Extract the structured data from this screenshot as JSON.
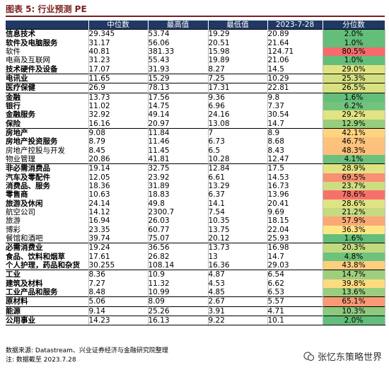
{
  "title": "图表 5:  行业预测 PE",
  "headers": [
    "",
    "中位数",
    "最高值",
    "最低值",
    "2023-7-28",
    "分位数"
  ],
  "colors": {
    "header_bg": "#1f3864",
    "title": "#7b1f1f"
  },
  "rows": [
    {
      "name": "信息技术",
      "level": 1,
      "cells": [
        "29.345",
        "53.74",
        "19.29",
        "20.89",
        "2.0%"
      ],
      "pct_color": "#63be7b"
    },
    {
      "name": "软件及电脑服务",
      "level": 2,
      "cells": [
        "31.17",
        "56.06",
        "20.51",
        "21.64",
        "1.0%"
      ],
      "pct_color": "#63be7b"
    },
    {
      "name": "软件",
      "level": 3,
      "cells": [
        "40.81",
        "381.33",
        "15.98",
        "124.71",
        "80.5%"
      ],
      "pct_color": "#f8696b"
    },
    {
      "name": "电商及互联网",
      "level": 3,
      "cells": [
        "31.23",
        "55.43",
        "19.89",
        "21.06",
        "1.0%"
      ],
      "pct_color": "#63be7b"
    },
    {
      "name": "技术硬件及设备",
      "level": 2,
      "cells": [
        "17.07",
        "31.93",
        "8.27",
        "14.5",
        "29.0%"
      ],
      "pct_color": "#e1e383"
    },
    {
      "name": "电讯业",
      "level": 1,
      "cells": [
        "11.65",
        "15.29",
        "7.25",
        "10.29",
        "25.3%"
      ],
      "pct_color": "#d4df82"
    },
    {
      "name": "医疗保健",
      "level": 1,
      "cells": [
        "26.9",
        "78.13",
        "17.31",
        "22.81",
        "26.5%"
      ],
      "pct_color": "#d8e082"
    },
    {
      "name": "金融",
      "level": 1,
      "cells": [
        "13.73",
        "17.56",
        "9.36",
        "9.8",
        "1.6%"
      ],
      "pct_color": "#63be7b"
    },
    {
      "name": "银行",
      "level": 2,
      "cells": [
        "11.02",
        "14.75",
        "6.96",
        "7.37",
        "6.2%"
      ],
      "pct_color": "#74c37c"
    },
    {
      "name": "金融服务",
      "level": 2,
      "cells": [
        "32.92",
        "49.14",
        "24.16",
        "30.54",
        "29.2%"
      ],
      "pct_color": "#e2e383"
    },
    {
      "name": "保险",
      "level": 2,
      "cells": [
        "16.16",
        "20.97",
        "13.08",
        "14.7",
        "12.9%"
      ],
      "pct_color": "#97cd7e"
    },
    {
      "name": "房地产",
      "level": 1,
      "cells": [
        "9.08",
        "11.84",
        "7",
        "8.9",
        "42.1%"
      ],
      "pct_color": "#fed480"
    },
    {
      "name": "房地产投资服务",
      "level": 2,
      "cells": [
        "8.79",
        "11.46",
        "6.73",
        "8.68",
        "46.7%"
      ],
      "pct_color": "#fdc37d"
    },
    {
      "name": "房地产控股与开发",
      "level": 3,
      "cells": [
        "8.45",
        "11.45",
        "6.5",
        "8.43",
        "48.3%"
      ],
      "pct_color": "#fdbf7c"
    },
    {
      "name": "物业管理",
      "level": 3,
      "cells": [
        "20.86",
        "41.81",
        "10.28",
        "12.47",
        "4.1%"
      ],
      "pct_color": "#6cc17c"
    },
    {
      "name": "非必需消费品",
      "level": 1,
      "cells": [
        "19.14",
        "32.75",
        "12.84",
        "17.5",
        "28.9%"
      ],
      "pct_color": "#e1e383"
    },
    {
      "name": "汽车及零配件",
      "level": 2,
      "cells": [
        "12.05",
        "23.92",
        "6.61",
        "14.53",
        "69.5%"
      ],
      "pct_color": "#f98f73"
    },
    {
      "name": "消费品、服务",
      "level": 2,
      "cells": [
        "18.36",
        "31.89",
        "13.29",
        "16.73",
        "23.7%"
      ],
      "pct_color": "#cfdd81"
    },
    {
      "name": "零售商",
      "level": 2,
      "cells": [
        "10.63",
        "18.83",
        "6.37",
        "13.96",
        "78.6%"
      ],
      "pct_color": "#f8706c"
    },
    {
      "name": "旅游及休闲",
      "level": 2,
      "cells": [
        "24.14",
        "49.8",
        "14.1",
        "20.41",
        "28.6%"
      ],
      "pct_color": "#e0e383"
    },
    {
      "name": "航空公司",
      "level": 3,
      "cells": [
        "14.12",
        "2300.7",
        "7.54",
        "9.69",
        "21.2%"
      ],
      "pct_color": "#c6da81"
    },
    {
      "name": "旅游",
      "level": 3,
      "cells": [
        "16.94",
        "26.03",
        "10.35",
        "18.15",
        "57.9%"
      ],
      "pct_color": "#fba877"
    },
    {
      "name": "博彩",
      "level": 3,
      "cells": [
        "23.35",
        "60.77",
        "13.75",
        "22.04",
        "36.3%"
      ],
      "pct_color": "#fee683"
    },
    {
      "name": "餐馆和酒吧",
      "level": 3,
      "cells": [
        "39.74",
        "75.07",
        "20.12",
        "25.93",
        "1.6%"
      ],
      "pct_color": "#63be7b"
    },
    {
      "name": "必需消费业",
      "level": 1,
      "cells": [
        "19.24",
        "36.56",
        "13.73",
        "16.98",
        "20.3%"
      ],
      "pct_color": "#c3d980"
    },
    {
      "name": "食品、饮料和烟草",
      "level": 2,
      "cells": [
        "17.61",
        "26.82",
        "13",
        "14.7",
        "4.8%"
      ],
      "pct_color": "#6fc27c"
    },
    {
      "name": "个人护理，药品和杂货",
      "level": 2,
      "cells": [
        "30.255",
        "108.14",
        "16.36",
        "29.03",
        "43.8%"
      ],
      "pct_color": "#fece7f"
    },
    {
      "name": "工业",
      "level": 1,
      "cells": [
        "8.36",
        "10.9",
        "4.87",
        "6.54",
        "14.7%"
      ],
      "pct_color": "#9ecf7f"
    },
    {
      "name": "建筑及材料",
      "level": 2,
      "cells": [
        "7.27",
        "11.32",
        "4.53",
        "6.62",
        "39.8%"
      ],
      "pct_color": "#feda81"
    },
    {
      "name": "工业产品和服务",
      "level": 2,
      "cells": [
        "8.48",
        "10.99",
        "4.85",
        "6.53",
        "13.6%"
      ],
      "pct_color": "#9acd7e"
    },
    {
      "name": "原材料",
      "level": 1,
      "cells": [
        "5.06",
        "8.09",
        "2.67",
        "5.57",
        "65.1%"
      ],
      "pct_color": "#fa9a75"
    },
    {
      "name": "能源",
      "level": 1,
      "cells": [
        "9.14",
        "25.26",
        "3.91",
        "4.71",
        "10.3%"
      ],
      "pct_color": "#8cca7e"
    },
    {
      "name": "公用事业",
      "level": 1,
      "cells": [
        "14.23",
        "16.13",
        "9.22",
        "10.1",
        "2.0%"
      ],
      "pct_color": "#64be7b"
    }
  ],
  "notes": {
    "source": "数据来源: Datastream、兴业证券经济与金融研究院整理",
    "note": "注:  数据截至 2023.7.28"
  },
  "watermark": "张忆东策略世界"
}
